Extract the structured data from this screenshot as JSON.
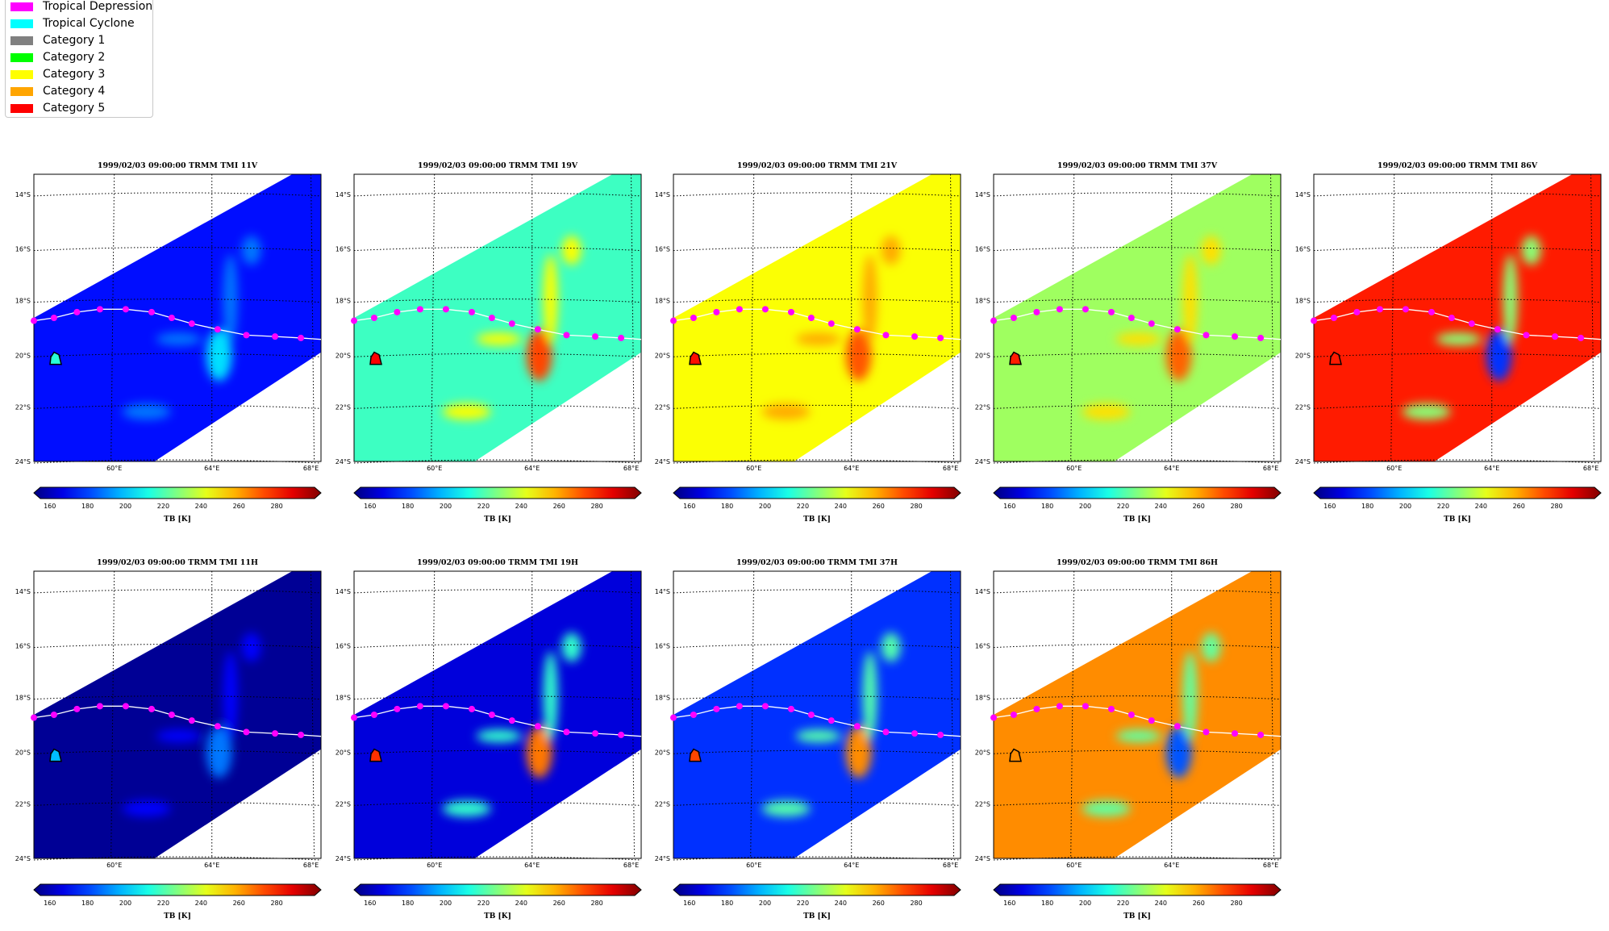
{
  "legend": {
    "items": [
      {
        "label": "Tropical Depression",
        "color": "#ff00ff"
      },
      {
        "label": "Tropical Cyclone",
        "color": "#00ffff"
      },
      {
        "label": "Category 1",
        "color": "#808080"
      },
      {
        "label": "Category 2",
        "color": "#00ff00"
      },
      {
        "label": "Category 3",
        "color": "#ffff00"
      },
      {
        "label": "Category 4",
        "color": "#ffa500"
      },
      {
        "label": "Category 5",
        "color": "#ff0000"
      }
    ]
  },
  "chart_data": [
    {
      "type": "heatmap",
      "title": "1999/02/03 09:00:00  TRMM TMI 11V",
      "mean_tb": 175,
      "storm_tb": 205,
      "xticks": [
        "60°E",
        "64°E",
        "68°E"
      ],
      "yticks": [
        "14°S",
        "16°S",
        "18°S",
        "20°S",
        "22°S",
        "24°S"
      ],
      "colorbar": {
        "ticks": [
          160,
          180,
          200,
          220,
          240,
          260,
          280
        ],
        "label": "TB [K]",
        "range": [
          155,
          300
        ]
      }
    },
    {
      "type": "heatmap",
      "title": "1999/02/03 09:00:00  TRMM TMI 19V",
      "mean_tb": 218,
      "storm_tb": 272,
      "xticks": [
        "60°E",
        "64°E",
        "68°E"
      ],
      "yticks": [
        "14°S",
        "16°S",
        "18°S",
        "20°S",
        "22°S",
        "24°S"
      ],
      "colorbar": {
        "ticks": [
          160,
          180,
          200,
          220,
          240,
          260,
          280
        ],
        "label": "TB [K]",
        "range": [
          155,
          300
        ]
      }
    },
    {
      "type": "heatmap",
      "title": "1999/02/03 09:00:00  TRMM TMI 21V",
      "mean_tb": 245,
      "storm_tb": 270,
      "xticks": [
        "60°E",
        "64°E",
        "68°E"
      ],
      "yticks": [
        "14°S",
        "16°S",
        "18°S",
        "20°S",
        "22°S",
        "24°S"
      ],
      "colorbar": {
        "ticks": [
          160,
          180,
          200,
          220,
          240,
          260,
          280
        ],
        "label": "TB [K]",
        "range": [
          155,
          300
        ]
      }
    },
    {
      "type": "heatmap",
      "title": "1999/02/03 09:00:00  TRMM TMI 37V",
      "mean_tb": 232,
      "storm_tb": 268,
      "xticks": [
        "60°E",
        "64°E",
        "68°E"
      ],
      "yticks": [
        "14°S",
        "16°S",
        "18°S",
        "20°S",
        "22°S",
        "24°S"
      ],
      "colorbar": {
        "ticks": [
          160,
          180,
          200,
          220,
          240,
          260,
          280
        ],
        "label": "TB [K]",
        "range": [
          155,
          300
        ]
      }
    },
    {
      "type": "heatmap",
      "title": "1999/02/03 09:00:00  TRMM TMI 86V",
      "mean_tb": 278,
      "storm_tb": 180,
      "xticks": [
        "60°E",
        "64°E",
        "68°E"
      ],
      "yticks": [
        "14°S",
        "16°S",
        "18°S",
        "20°S",
        "22°S",
        "24°S"
      ],
      "colorbar": {
        "ticks": [
          160,
          180,
          200,
          220,
          240,
          260,
          280
        ],
        "label": "TB [K]",
        "range": [
          155,
          300
        ]
      }
    },
    {
      "type": "heatmap",
      "title": "1999/02/03 09:00:00  TRMM TMI 11H",
      "mean_tb": 158,
      "storm_tb": 190,
      "xticks": [
        "60°E",
        "64°E",
        "68°E"
      ],
      "yticks": [
        "14°S",
        "16°S",
        "18°S",
        "20°S",
        "22°S",
        "24°S"
      ],
      "colorbar": {
        "ticks": [
          160,
          180,
          200,
          220,
          240,
          260,
          280
        ],
        "label": "TB [K]",
        "range": [
          155,
          300
        ]
      }
    },
    {
      "type": "heatmap",
      "title": "1999/02/03 09:00:00  TRMM TMI 19H",
      "mean_tb": 168,
      "storm_tb": 265,
      "xticks": [
        "60°E",
        "64°E",
        "68°E"
      ],
      "yticks": [
        "14°S",
        "16°S",
        "18°S",
        "20°S",
        "22°S",
        "24°S"
      ],
      "colorbar": {
        "ticks": [
          160,
          180,
          200,
          220,
          240,
          260,
          280
        ],
        "label": "TB [K]",
        "range": [
          155,
          300
        ]
      }
    },
    {
      "type": "heatmap",
      "title": "1999/02/03 09:00:00  TRMM TMI 37H",
      "mean_tb": 180,
      "storm_tb": 262,
      "xticks": [
        "60°E",
        "64°E",
        "68°E"
      ],
      "yticks": [
        "14°S",
        "16°S",
        "18°S",
        "20°S",
        "22°S",
        "24°S"
      ],
      "colorbar": {
        "ticks": [
          160,
          180,
          200,
          220,
          240,
          260,
          280
        ],
        "label": "TB [K]",
        "range": [
          155,
          300
        ]
      }
    },
    {
      "type": "heatmap",
      "title": "1999/02/03 09:00:00  TRMM TMI 86H",
      "mean_tb": 262,
      "storm_tb": 185,
      "xticks": [
        "60°E",
        "64°E",
        "68°E"
      ],
      "yticks": [
        "14°S",
        "16°S",
        "18°S",
        "20°S",
        "22°S",
        "24°S"
      ],
      "colorbar": {
        "ticks": [
          160,
          180,
          200,
          220,
          240,
          260,
          280
        ],
        "label": "TB [K]",
        "range": [
          155,
          300
        ]
      }
    }
  ]
}
